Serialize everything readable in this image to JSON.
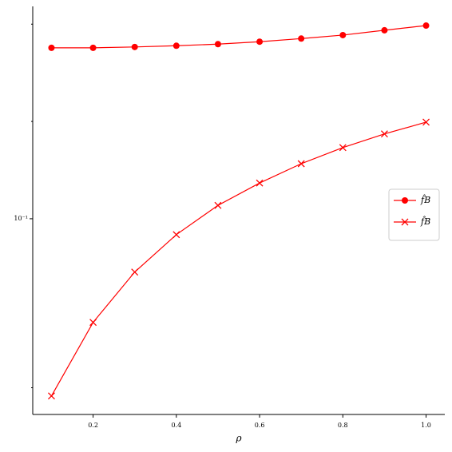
{
  "chart_data": {
    "type": "line",
    "xlabel": "ρ",
    "x": [
      0.1,
      0.2,
      0.3,
      0.4,
      0.5,
      0.6,
      0.7,
      0.8,
      0.9,
      1.0
    ],
    "series": [
      {
        "name": "f̂B",
        "color": "#ff0000",
        "marker": "circle",
        "values": [
          0.338,
          0.338,
          0.34,
          0.343,
          0.347,
          0.353,
          0.361,
          0.37,
          0.383,
          0.396
        ]
      },
      {
        "name": "f̂B",
        "color": "#ff0000",
        "marker": "x",
        "values": [
          0.0283,
          0.0478,
          0.0684,
          0.0893,
          0.11,
          0.129,
          0.148,
          0.166,
          0.183,
          0.199
        ]
      }
    ],
    "xlim": [
      0.055,
      1.045
    ],
    "ylim": [
      0.0248,
      0.454
    ],
    "log_y": true,
    "xticks": [
      0.2,
      0.4,
      0.6,
      0.8,
      {
        "value": 1.0,
        "label": "1.0"
      }
    ],
    "yticks": [
      {
        "value": 0.1,
        "label": "10⁻¹"
      }
    ],
    "yminorticks": [
      0.03,
      0.2,
      0.4
    ],
    "legend": "right"
  }
}
